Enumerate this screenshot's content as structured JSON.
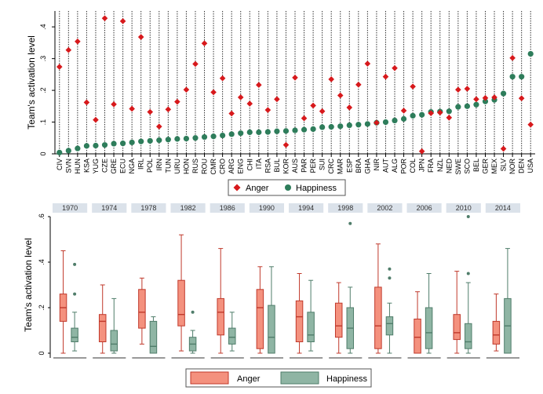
{
  "colors": {
    "anger": "#d7191c",
    "happiness": "#2e7d5b",
    "anger_fill": "#f4917e",
    "anger_stroke": "#c0392b",
    "happy_fill": "#8fb5a4",
    "happy_stroke": "#4f7d6a",
    "panel_bg": "#dbe2ea"
  },
  "chart_data": [
    {
      "type": "scatter",
      "title": "",
      "ylabel": "Team's activation level",
      "ylim": [
        0,
        0.45
      ],
      "yticks": [
        0,
        0.1,
        0.2,
        0.3,
        0.4
      ],
      "ytick_labels": [
        "0",
        ".1",
        ".2",
        ".3",
        ".4"
      ],
      "grid": "vertical dotted lines",
      "legend": "bottom-center",
      "categories": [
        "CIV",
        "SVN",
        "HUN",
        "KSA",
        "YUG",
        "CZE",
        "GRE",
        "ECU",
        "NGA",
        "IRL",
        "POL",
        "IRN",
        "TUN",
        "URU",
        "HON",
        "RUS",
        "ROU",
        "CMR",
        "CRO",
        "ARG",
        "ENG",
        "CHI",
        "ITA",
        "RSA",
        "BUL",
        "KOR",
        "AUS",
        "PAR",
        "PER",
        "SUI",
        "CRC",
        "MAR",
        "ESP",
        "BRA",
        "GHA",
        "NIR",
        "AUT",
        "ALG",
        "POR",
        "COL",
        "JPN",
        "FRA",
        "NZL",
        "NED",
        "SWE",
        "SCO",
        "BEL",
        "GER",
        "MEX",
        "SLV",
        "NOR",
        "DEN",
        "USA"
      ],
      "series": [
        {
          "name": "Anger",
          "marker": "diamond",
          "values": [
            0.274,
            0.327,
            0.354,
            0.162,
            0.107,
            0.427,
            0.156,
            0.418,
            0.142,
            0.368,
            0.132,
            0.086,
            0.14,
            0.164,
            0.202,
            0.283,
            0.348,
            0.194,
            0.238,
            0.127,
            0.178,
            0.158,
            0.217,
            0.138,
            0.172,
            0.028,
            0.24,
            0.112,
            0.152,
            0.134,
            0.235,
            0.184,
            0.146,
            0.218,
            0.284,
            0.098,
            0.243,
            0.27,
            0.136,
            0.212,
            0.008,
            0.128,
            0.13,
            0.114,
            0.202,
            0.205,
            0.172,
            0.176,
            0.178,
            0.016,
            0.302,
            0.175,
            0.092
          ]
        },
        {
          "name": "Happiness",
          "marker": "circle",
          "values": [
            0.004,
            0.01,
            0.017,
            0.025,
            0.026,
            0.028,
            0.032,
            0.033,
            0.036,
            0.039,
            0.041,
            0.043,
            0.045,
            0.047,
            0.048,
            0.05,
            0.053,
            0.055,
            0.058,
            0.062,
            0.065,
            0.068,
            0.068,
            0.069,
            0.071,
            0.072,
            0.074,
            0.076,
            0.078,
            0.084,
            0.085,
            0.087,
            0.09,
            0.092,
            0.094,
            0.098,
            0.1,
            0.105,
            0.11,
            0.12,
            0.123,
            0.132,
            0.133,
            0.134,
            0.148,
            0.15,
            0.155,
            0.165,
            0.17,
            0.19,
            0.243,
            0.243,
            0.315
          ]
        }
      ]
    },
    {
      "type": "box",
      "title": "",
      "ylabel": "Team's activation level",
      "ylim": [
        0,
        0.6
      ],
      "yticks": [
        0,
        0.2,
        0.4,
        0.6
      ],
      "ytick_labels": [
        "0",
        ".2",
        ".4",
        ".6"
      ],
      "legend": "bottom-center",
      "panels": [
        "1970",
        "1974",
        "1978",
        "1982",
        "1986",
        "1990",
        "1994",
        "1998",
        "2002",
        "2006",
        "2010",
        "2014"
      ],
      "series": [
        {
          "name": "Anger",
          "boxes": [
            {
              "min": 0.0,
              "q1": 0.14,
              "median": 0.2,
              "q3": 0.26,
              "max": 0.45,
              "outliers": []
            },
            {
              "min": 0.0,
              "q1": 0.05,
              "median": 0.14,
              "q3": 0.17,
              "max": 0.3,
              "outliers": []
            },
            {
              "min": 0.04,
              "q1": 0.11,
              "median": 0.18,
              "q3": 0.28,
              "max": 0.33,
              "outliers": []
            },
            {
              "min": 0.01,
              "q1": 0.12,
              "median": 0.17,
              "q3": 0.32,
              "max": 0.52,
              "outliers": []
            },
            {
              "min": 0.0,
              "q1": 0.08,
              "median": 0.18,
              "q3": 0.24,
              "max": 0.46,
              "outliers": []
            },
            {
              "min": 0.0,
              "q1": 0.02,
              "median": 0.2,
              "q3": 0.28,
              "max": 0.38,
              "outliers": []
            },
            {
              "min": 0.0,
              "q1": 0.05,
              "median": 0.16,
              "q3": 0.23,
              "max": 0.35,
              "outliers": []
            },
            {
              "min": 0.0,
              "q1": 0.07,
              "median": 0.12,
              "q3": 0.22,
              "max": 0.31,
              "outliers": []
            },
            {
              "min": 0.0,
              "q1": 0.02,
              "median": 0.12,
              "q3": 0.29,
              "max": 0.48,
              "outliers": []
            },
            {
              "min": 0.0,
              "q1": 0.0,
              "median": 0.07,
              "q3": 0.15,
              "max": 0.27,
              "outliers": []
            },
            {
              "min": 0.0,
              "q1": 0.06,
              "median": 0.09,
              "q3": 0.17,
              "max": 0.36,
              "outliers": []
            },
            {
              "min": 0.01,
              "q1": 0.04,
              "median": 0.08,
              "q3": 0.14,
              "max": 0.26,
              "outliers": []
            }
          ]
        },
        {
          "name": "Happiness",
          "boxes": [
            {
              "min": 0.01,
              "q1": 0.05,
              "median": 0.07,
              "q3": 0.11,
              "max": 0.18,
              "outliers": [
                0.26,
                0.39
              ]
            },
            {
              "min": 0.0,
              "q1": 0.01,
              "median": 0.04,
              "q3": 0.1,
              "max": 0.24,
              "outliers": []
            },
            {
              "min": 0.0,
              "q1": 0.0,
              "median": 0.03,
              "q3": 0.14,
              "max": 0.16,
              "outliers": []
            },
            {
              "min": 0.0,
              "q1": 0.01,
              "median": 0.04,
              "q3": 0.07,
              "max": 0.1,
              "outliers": [
                0.18
              ]
            },
            {
              "min": 0.01,
              "q1": 0.04,
              "median": 0.07,
              "q3": 0.11,
              "max": 0.18,
              "outliers": []
            },
            {
              "min": 0.0,
              "q1": 0.0,
              "median": 0.07,
              "q3": 0.21,
              "max": 0.38,
              "outliers": []
            },
            {
              "min": 0.01,
              "q1": 0.05,
              "median": 0.08,
              "q3": 0.18,
              "max": 0.32,
              "outliers": []
            },
            {
              "min": 0.0,
              "q1": 0.02,
              "median": 0.11,
              "q3": 0.2,
              "max": 0.29,
              "outliers": [
                0.57
              ]
            },
            {
              "min": 0.0,
              "q1": 0.08,
              "median": 0.13,
              "q3": 0.16,
              "max": 0.22,
              "outliers": [
                0.33,
                0.37
              ]
            },
            {
              "min": 0.0,
              "q1": 0.02,
              "median": 0.09,
              "q3": 0.2,
              "max": 0.35,
              "outliers": []
            },
            {
              "min": 0.0,
              "q1": 0.02,
              "median": 0.05,
              "q3": 0.13,
              "max": 0.31,
              "outliers": [
                0.35,
                0.6
              ]
            },
            {
              "min": 0.0,
              "q1": 0.0,
              "median": 0.12,
              "q3": 0.24,
              "max": 0.46,
              "outliers": []
            }
          ]
        }
      ]
    }
  ]
}
